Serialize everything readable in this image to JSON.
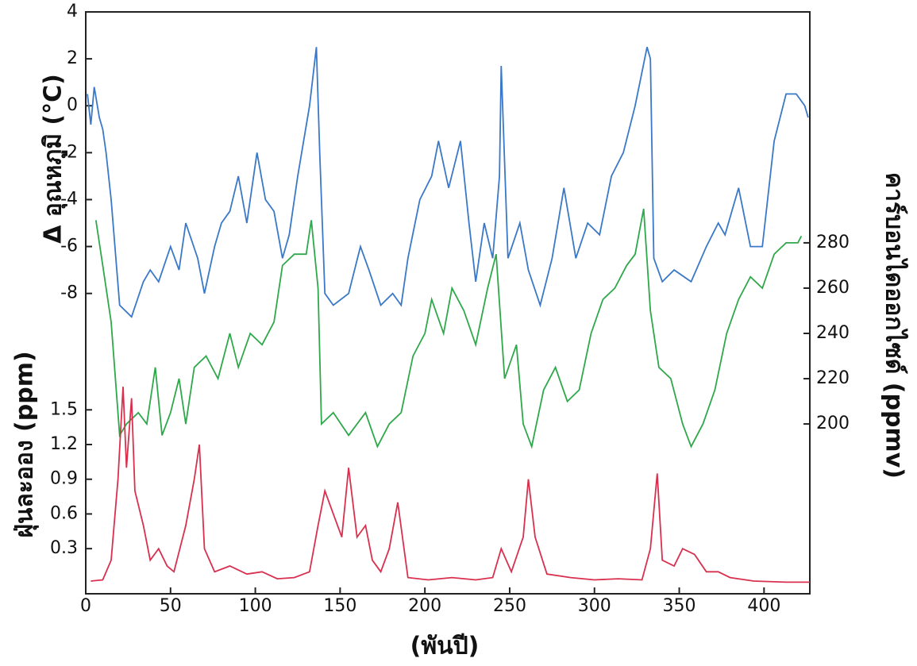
{
  "chart_data": {
    "type": "line",
    "x_label": "(พันปี)",
    "xlim": [
      0,
      427
    ],
    "xticks": [
      0,
      50,
      100,
      150,
      200,
      250,
      300,
      350,
      400
    ],
    "series": [
      {
        "label": "Δ อุณหภูมิ (°C)",
        "color": "#3a78c8",
        "side": "left-top",
        "ylim": [
          -20.8,
          4
        ],
        "yticks": [
          4,
          2,
          0,
          -2,
          -4,
          -6,
          -8
        ],
        "x": [
          1,
          3,
          5,
          8,
          10,
          12,
          15,
          20,
          27,
          34,
          38,
          43,
          50,
          55,
          59,
          66,
          70,
          76,
          80,
          85,
          90,
          95,
          101,
          106,
          111,
          116,
          120,
          125,
          132,
          136,
          138,
          141,
          146,
          155,
          162,
          167,
          174,
          181,
          186,
          190,
          197,
          204,
          208,
          214,
          221,
          226,
          230,
          235,
          240,
          244,
          245,
          249,
          256,
          261,
          268,
          275,
          282,
          289,
          296,
          303,
          310,
          317,
          324,
          331,
          333,
          335,
          340,
          347,
          357,
          366,
          373,
          377,
          385,
          392,
          399,
          406,
          413,
          419,
          424,
          426
        ],
        "values": [
          0.5,
          -0.8,
          0.8,
          -0.5,
          -1,
          -2,
          -4,
          -8.5,
          -9,
          -7.5,
          -7,
          -7.5,
          -6,
          -7,
          -5,
          -6.5,
          -8,
          -6,
          -5,
          -4.5,
          -3,
          -5,
          -2,
          -4,
          -4.5,
          -6.5,
          -5.5,
          -3,
          0,
          2.5,
          -2,
          -8,
          -8.5,
          -8,
          -6,
          -7,
          -8.5,
          -8,
          -8.5,
          -6.5,
          -4,
          -3,
          -1.5,
          -3.5,
          -1.5,
          -5,
          -7.5,
          -5,
          -6.5,
          -3,
          1.7,
          -6.5,
          -5,
          -7,
          -8.5,
          -6.5,
          -3.5,
          -6.5,
          -5,
          -5.5,
          -3,
          -2,
          0,
          2.5,
          2,
          -6.5,
          -7.5,
          -7,
          -7.5,
          -6,
          -5,
          -5.5,
          -3.5,
          -6,
          -6,
          -1.5,
          0.5,
          0.5,
          0,
          -0.5
        ]
      },
      {
        "label": "คาร์บอนไดออกไซด์ (ppmv)",
        "color": "#2ea84a",
        "side": "right",
        "ylim": [
          125,
          382
        ],
        "yticks": [
          200,
          220,
          240,
          260,
          280
        ],
        "x": [
          6,
          10,
          15,
          20,
          24,
          31,
          36,
          41,
          45,
          50,
          55,
          59,
          64,
          71,
          78,
          85,
          90,
          97,
          104,
          111,
          116,
          123,
          130,
          133,
          137,
          139,
          146,
          155,
          165,
          172,
          179,
          186,
          193,
          200,
          204,
          211,
          216,
          223,
          230,
          237,
          242,
          247,
          254,
          258,
          263,
          270,
          277,
          284,
          291,
          298,
          305,
          312,
          319,
          324,
          329,
          333,
          338,
          345,
          352,
          357,
          364,
          371,
          378,
          385,
          392,
          399,
          406,
          413,
          420,
          422
        ],
        "values": [
          290,
          270,
          245,
          195,
          200,
          205,
          200,
          225,
          195,
          205,
          220,
          200,
          225,
          230,
          220,
          240,
          225,
          240,
          235,
          245,
          270,
          275,
          275,
          290,
          260,
          200,
          205,
          195,
          205,
          190,
          200,
          205,
          230,
          240,
          255,
          240,
          260,
          250,
          235,
          260,
          275,
          220,
          235,
          200,
          190,
          215,
          225,
          210,
          215,
          240,
          255,
          260,
          270,
          275,
          295,
          250,
          225,
          220,
          200,
          190,
          200,
          215,
          240,
          255,
          265,
          260,
          275,
          280,
          280,
          283
        ]
      },
      {
        "label": "ฝุ่นละออง (ppm)",
        "color": "#d8304e",
        "side": "left-bottom",
        "ylim": [
          -0.09,
          4.94
        ],
        "yticks": [
          0.3,
          0.6,
          0.9,
          1.2,
          1.5
        ],
        "x": [
          3,
          10,
          15,
          19,
          22,
          24,
          27,
          29,
          34,
          38,
          43,
          48,
          52,
          59,
          64,
          67,
          70,
          76,
          85,
          95,
          104,
          113,
          123,
          132,
          137,
          141,
          146,
          151,
          155,
          160,
          165,
          169,
          174,
          179,
          184,
          190,
          202,
          216,
          230,
          240,
          245,
          251,
          258,
          261,
          265,
          272,
          286,
          300,
          314,
          328,
          333,
          337,
          340,
          347,
          352,
          359,
          366,
          373,
          380,
          394,
          413,
          427
        ],
        "values": [
          0.02,
          0.03,
          0.2,
          0.9,
          1.7,
          1.0,
          1.6,
          0.8,
          0.5,
          0.2,
          0.3,
          0.15,
          0.1,
          0.5,
          0.9,
          1.2,
          0.3,
          0.1,
          0.15,
          0.08,
          0.1,
          0.04,
          0.05,
          0.1,
          0.5,
          0.8,
          0.6,
          0.4,
          1.0,
          0.4,
          0.5,
          0.2,
          0.1,
          0.3,
          0.7,
          0.05,
          0.03,
          0.05,
          0.03,
          0.05,
          0.3,
          0.1,
          0.4,
          0.9,
          0.4,
          0.08,
          0.05,
          0.03,
          0.04,
          0.03,
          0.3,
          0.95,
          0.2,
          0.15,
          0.3,
          0.25,
          0.1,
          0.1,
          0.05,
          0.02,
          0.01,
          0.01
        ]
      }
    ]
  }
}
